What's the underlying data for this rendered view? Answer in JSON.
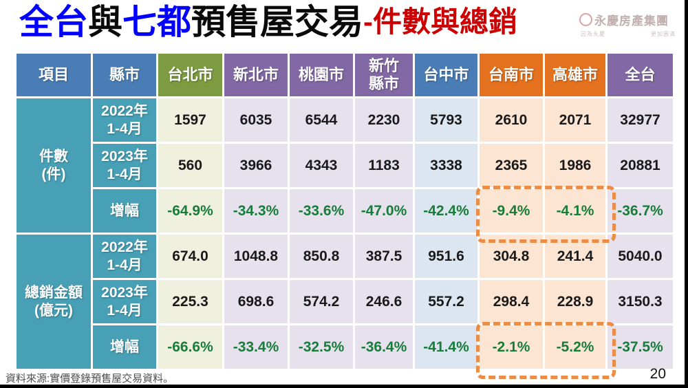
{
  "title": {
    "parts": [
      {
        "text": "全台",
        "color": "#0000ff"
      },
      {
        "text": "與",
        "color": "#0a0a0a"
      },
      {
        "text": "七都",
        "color": "#0000ff"
      },
      {
        "text": "預售屋交易",
        "color": "#0a0a0a"
      },
      {
        "text": "-件數與總銷",
        "color": "#cc0000"
      }
    ]
  },
  "logo": {
    "name": "永慶房產集團",
    "tagline_left": "因為永慶",
    "tagline_right": "更加圓滿"
  },
  "table": {
    "header": {
      "item": "項目",
      "county": "縣市",
      "cities": [
        {
          "l1": "台北市",
          "l2": ""
        },
        {
          "l1": "新北市",
          "l2": ""
        },
        {
          "l1": "桃園市",
          "l2": ""
        },
        {
          "l1": "新竹",
          "l2": "縣市"
        },
        {
          "l1": "台中市",
          "l2": ""
        },
        {
          "l1": "台南市",
          "l2": ""
        },
        {
          "l1": "高雄市",
          "l2": ""
        },
        {
          "l1": "全台",
          "l2": ""
        }
      ]
    },
    "sections": [
      {
        "label": {
          "l1": "件數",
          "l2": "(件)"
        },
        "rows": [
          {
            "label": {
              "l1": "2022年",
              "l2": "1-4月"
            },
            "values": [
              "1597",
              "6035",
              "6544",
              "2230",
              "5793",
              "2610",
              "2071",
              "32977"
            ]
          },
          {
            "label": {
              "l1": "2023年",
              "l2": "1-4月"
            },
            "values": [
              "560",
              "3966",
              "4343",
              "1183",
              "3338",
              "2365",
              "1986",
              "20881"
            ]
          },
          {
            "label": {
              "l1": "增幅",
              "l2": ""
            },
            "values": [
              "-64.9%",
              "-34.3%",
              "-33.6%",
              "-47.0%",
              "-42.4%",
              "-9.4%",
              "-4.1%",
              "-36.7%"
            ]
          }
        ]
      },
      {
        "label": {
          "l1": "總銷金額",
          "l2": "(億元)"
        },
        "rows": [
          {
            "label": {
              "l1": "2022年",
              "l2": "1-4月"
            },
            "values": [
              "674.0",
              "1048.8",
              "850.8",
              "387.5",
              "951.6",
              "304.8",
              "241.4",
              "5040.0"
            ]
          },
          {
            "label": {
              "l1": "2023年",
              "l2": "1-4月"
            },
            "values": [
              "225.3",
              "698.6",
              "574.2",
              "246.6",
              "557.2",
              "298.4",
              "228.9",
              "3150.3"
            ]
          },
          {
            "label": {
              "l1": "增幅",
              "l2": ""
            },
            "values": [
              "-66.6%",
              "-33.4%",
              "-32.5%",
              "-36.4%",
              "-41.4%",
              "-2.1%",
              "-5.2%",
              "-37.5%"
            ]
          }
        ]
      }
    ]
  },
  "chart_data": {
    "type": "table",
    "title": "全台與七都預售屋交易-件數與總銷",
    "columns": [
      "項目",
      "縣市",
      "台北市",
      "新北市",
      "桃園市",
      "新竹縣市",
      "台中市",
      "台南市",
      "高雄市",
      "全台"
    ],
    "rows": [
      [
        "件數(件)",
        "2022年1-4月",
        1597,
        6035,
        6544,
        2230,
        5793,
        2610,
        2071,
        32977
      ],
      [
        "件數(件)",
        "2023年1-4月",
        560,
        3966,
        4343,
        1183,
        3338,
        2365,
        1986,
        20881
      ],
      [
        "件數(件)",
        "增幅",
        "-64.9%",
        "-34.3%",
        "-33.6%",
        "-47.0%",
        "-42.4%",
        "-9.4%",
        "-4.1%",
        "-36.7%"
      ],
      [
        "總銷金額(億元)",
        "2022年1-4月",
        674.0,
        1048.8,
        850.8,
        387.5,
        951.6,
        304.8,
        241.4,
        5040.0
      ],
      [
        "總銷金額(億元)",
        "2023年1-4月",
        225.3,
        698.6,
        574.2,
        246.6,
        557.2,
        298.4,
        228.9,
        3150.3
      ],
      [
        "總銷金額(億元)",
        "增幅",
        "-66.6%",
        "-33.4%",
        "-32.5%",
        "-36.4%",
        "-41.4%",
        "-2.1%",
        "-5.2%",
        "-37.5%"
      ]
    ],
    "highlighted_cells": "台南市與高雄市的增幅(虛線框)"
  },
  "footer": {
    "source": "資料來源:實價登錄預售屋交易資料。",
    "page": "20"
  },
  "colors": {
    "header_blue": "#4a7db5",
    "header_olive": "#7d9b41",
    "header_purple": "#8269a5",
    "header_orange": "#e4711e",
    "label_teal": "#47a0b5",
    "cell_olive_tint": "#eff1de",
    "cell_purple_tint": "#e6e1ed",
    "cell_blue_tint": "#dce6f1",
    "cell_orange_tint": "#fce5d2",
    "negative_green": "#187c3a",
    "highlight_dash_orange": "#eb8d47",
    "title_blue": "#0000ff",
    "title_red": "#cc0000"
  }
}
